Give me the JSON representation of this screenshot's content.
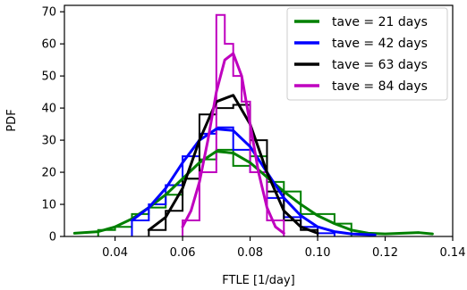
{
  "chart_data": {
    "type": "line",
    "xlabel": "FTLE [1/day]",
    "ylabel": "PDF",
    "xlim": [
      0.025,
      0.14
    ],
    "ylim": [
      0,
      72
    ],
    "xticks": [
      0.04,
      0.06,
      0.08,
      0.1,
      0.12,
      0.14
    ],
    "xtick_labels": [
      "0.04",
      "0.06",
      "0.08",
      "0.10",
      "0.12",
      "0.14"
    ],
    "yticks": [
      0,
      10,
      20,
      30,
      40,
      50,
      60,
      70
    ],
    "ytick_labels": [
      "0",
      "10",
      "20",
      "30",
      "40",
      "50",
      "60",
      "70"
    ],
    "grid": false,
    "legend_position": "top-right",
    "series": [
      {
        "name": "tave = 21 days",
        "color": "#008000",
        "hist_edges": [
          0.035,
          0.04,
          0.045,
          0.05,
          0.055,
          0.06,
          0.065,
          0.07,
          0.075,
          0.08,
          0.085,
          0.09,
          0.095,
          0.1,
          0.105,
          0.11
        ],
        "hist_counts": [
          2,
          3,
          7,
          9,
          13,
          18,
          24,
          27,
          22,
          25,
          17,
          14,
          7,
          7,
          4
        ],
        "curve_x": [
          0.028,
          0.035,
          0.04,
          0.045,
          0.05,
          0.055,
          0.06,
          0.065,
          0.07,
          0.075,
          0.08,
          0.085,
          0.09,
          0.095,
          0.1,
          0.105,
          0.11,
          0.115,
          0.12,
          0.125,
          0.13,
          0.134
        ],
        "curve_y": [
          1,
          1.5,
          3,
          5.5,
          9,
          13,
          18,
          23,
          26.5,
          26,
          23,
          18.5,
          14,
          10,
          6.5,
          4,
          2,
          1,
          0.8,
          1,
          1.2,
          0.8
        ]
      },
      {
        "name": "tave = 42 days",
        "color": "#0000ff",
        "hist_edges": [
          0.045,
          0.05,
          0.055,
          0.06,
          0.065,
          0.07,
          0.075,
          0.08,
          0.085,
          0.09,
          0.095,
          0.1,
          0.105
        ],
        "hist_counts": [
          5,
          10,
          16,
          25,
          32,
          34,
          27,
          20,
          12,
          6,
          3,
          1
        ],
        "curve_x": [
          0.045,
          0.05,
          0.055,
          0.06,
          0.065,
          0.07,
          0.075,
          0.08,
          0.085,
          0.09,
          0.095,
          0.1,
          0.105,
          0.11,
          0.117
        ],
        "curve_y": [
          5,
          9,
          15,
          23,
          30,
          33.5,
          33,
          28,
          20,
          12,
          6.5,
          3,
          1.5,
          0.8,
          0.5
        ]
      },
      {
        "name": "tave = 63 days",
        "color": "#000000",
        "hist_edges": [
          0.05,
          0.055,
          0.06,
          0.065,
          0.07,
          0.075,
          0.08,
          0.085,
          0.09,
          0.095,
          0.1
        ],
        "hist_counts": [
          2,
          8,
          18,
          38,
          40,
          41,
          30,
          14,
          5,
          2
        ],
        "curve_x": [
          0.05,
          0.055,
          0.06,
          0.065,
          0.07,
          0.075,
          0.08,
          0.085,
          0.09,
          0.095,
          0.1
        ],
        "curve_y": [
          2,
          6,
          15,
          30,
          42,
          44,
          35,
          20,
          8,
          3,
          1
        ]
      },
      {
        "name": "tave = 84 days",
        "color": "#bf00bf",
        "hist_edges": [
          0.06,
          0.065,
          0.07,
          0.0725,
          0.075,
          0.0775,
          0.08,
          0.085,
          0.09
        ],
        "hist_counts": [
          5,
          20,
          69,
          60,
          50,
          42,
          20,
          5
        ],
        "curve_x": [
          0.06,
          0.0625,
          0.065,
          0.0675,
          0.07,
          0.0725,
          0.075,
          0.0775,
          0.08,
          0.0825,
          0.085,
          0.0875,
          0.09
        ],
        "curve_y": [
          3,
          8,
          17,
          30,
          45,
          55,
          57,
          50,
          35,
          20,
          9,
          3,
          1
        ]
      }
    ]
  }
}
